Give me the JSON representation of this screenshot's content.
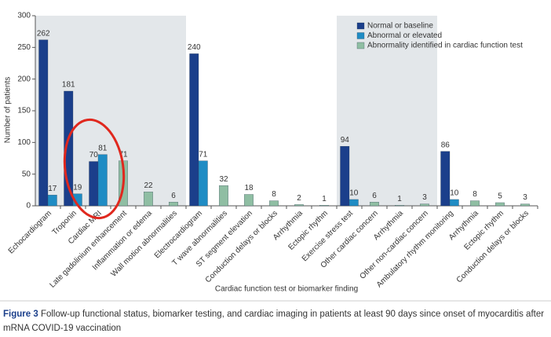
{
  "chart_data": {
    "type": "bar",
    "categories": [
      "Echocardiogram",
      "Troponin",
      "Cardiac MRI",
      "Late gadolinium enhancement",
      "Inflammation or edema",
      "Wall motion abnormalities",
      "Electrocardiogram",
      "T wave abnormalities",
      "ST segment elevation",
      "Conduction delays or blocks",
      "Arrhythmia",
      "Ectopic rhythm",
      "Exercise stress test",
      "Other cardiac concern",
      "Arrhythmia",
      "Other non-cardiac concern",
      "Ambulatory rhythm monitoring",
      "Arrhythmia",
      "Ectopic rhythm",
      "Conduction delays or blocks"
    ],
    "series": [
      {
        "name": "Normal or baseline",
        "color": "#1b3f8b",
        "values": [
          262,
          181,
          70,
          null,
          null,
          null,
          240,
          null,
          null,
          null,
          null,
          null,
          94,
          null,
          null,
          null,
          86,
          null,
          null,
          null
        ]
      },
      {
        "name": "Abnormal or elevated",
        "color": "#1f8cc4",
        "values": [
          17,
          19,
          81,
          null,
          null,
          null,
          71,
          null,
          null,
          null,
          null,
          null,
          10,
          null,
          null,
          null,
          10,
          null,
          null,
          null
        ]
      },
      {
        "name": "Abnormality identified in cardiac function test",
        "color": "#8fbea3",
        "values": [
          null,
          null,
          null,
          71,
          22,
          6,
          null,
          32,
          18,
          8,
          2,
          1,
          null,
          6,
          1,
          3,
          null,
          8,
          5,
          3
        ]
      }
    ],
    "ylim": [
      0,
      300
    ],
    "yticks": [
      0,
      50,
      100,
      150,
      200,
      250,
      300
    ],
    "y_label": "Number of patients",
    "x_label": "Cardiac function test or biomarker finding",
    "shaded_categories": [
      [
        0,
        5
      ],
      [
        12,
        15
      ]
    ],
    "legend": "top-right"
  },
  "caption": {
    "label": "Figure 3",
    "text": "Follow-up functional status, biomarker testing, and cardiac imaging in patients at least 90 days since onset of myocarditis after mRNA COVID-19 vaccination"
  }
}
